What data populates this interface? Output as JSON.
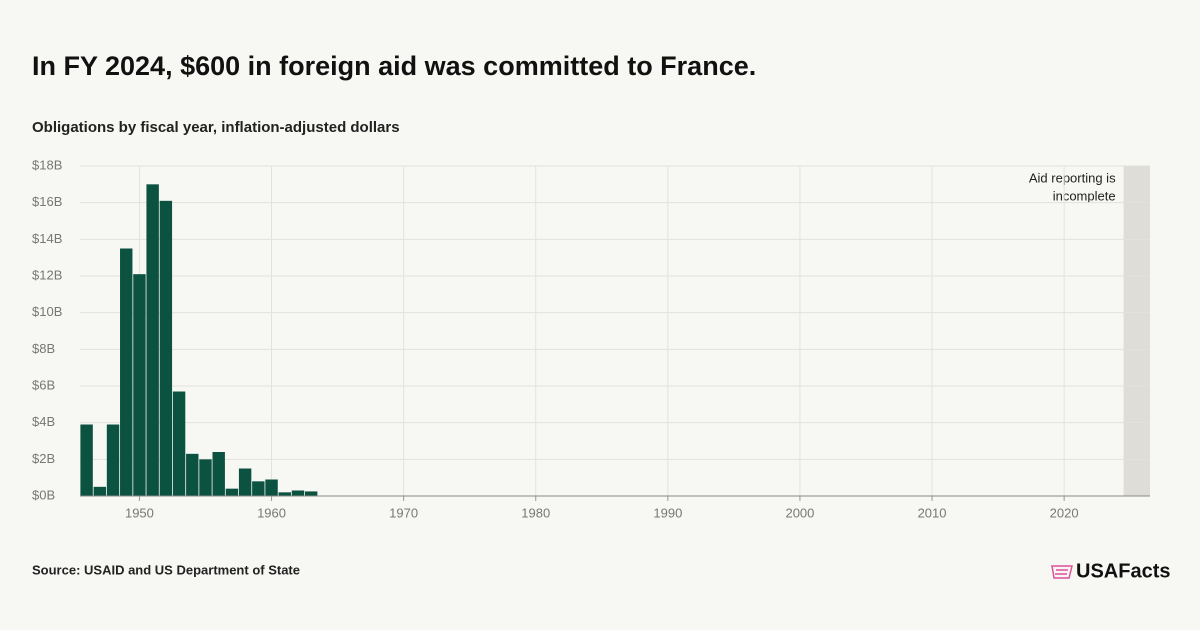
{
  "chart_data": {
    "type": "bar",
    "title": "In FY 2024, $600 in foreign aid was committed to France.",
    "subtitle": "Obligations by fiscal year, inflation-adjusted dollars",
    "source": "Source: USAID and US Department of State",
    "brand": "USAFacts",
    "annotation": [
      "Aid reporting is",
      "incomplete"
    ],
    "shaded_xrange": [
      2024.5,
      2026.5
    ],
    "x": [
      1946,
      1947,
      1948,
      1949,
      1950,
      1951,
      1952,
      1953,
      1954,
      1955,
      1956,
      1957,
      1958,
      1959,
      1960,
      1961,
      1962,
      1963
    ],
    "values": [
      3.9,
      0.5,
      3.9,
      13.5,
      12.1,
      17.0,
      16.1,
      5.7,
      2.3,
      2.0,
      2.4,
      0.4,
      1.5,
      0.8,
      0.9,
      0.2,
      0.3,
      0.25
    ],
    "color": "#0c5240",
    "xlim": [
      1945.5,
      2026.5
    ],
    "xticks": [
      1950,
      1960,
      1970,
      1980,
      1990,
      2000,
      2010,
      2020
    ],
    "ylim": [
      0,
      18
    ],
    "yticks": [
      {
        "value": 0,
        "label": "$0B"
      },
      {
        "value": 2,
        "label": "$2B"
      },
      {
        "value": 4,
        "label": "$4B"
      },
      {
        "value": 6,
        "label": "$6B"
      },
      {
        "value": 8,
        "label": "$8B"
      },
      {
        "value": 10,
        "label": "$10B"
      },
      {
        "value": 12,
        "label": "$12B"
      },
      {
        "value": 14,
        "label": "$14B"
      },
      {
        "value": 16,
        "label": "$16B"
      },
      {
        "value": 18,
        "label": "$18B"
      }
    ],
    "grid": true
  }
}
